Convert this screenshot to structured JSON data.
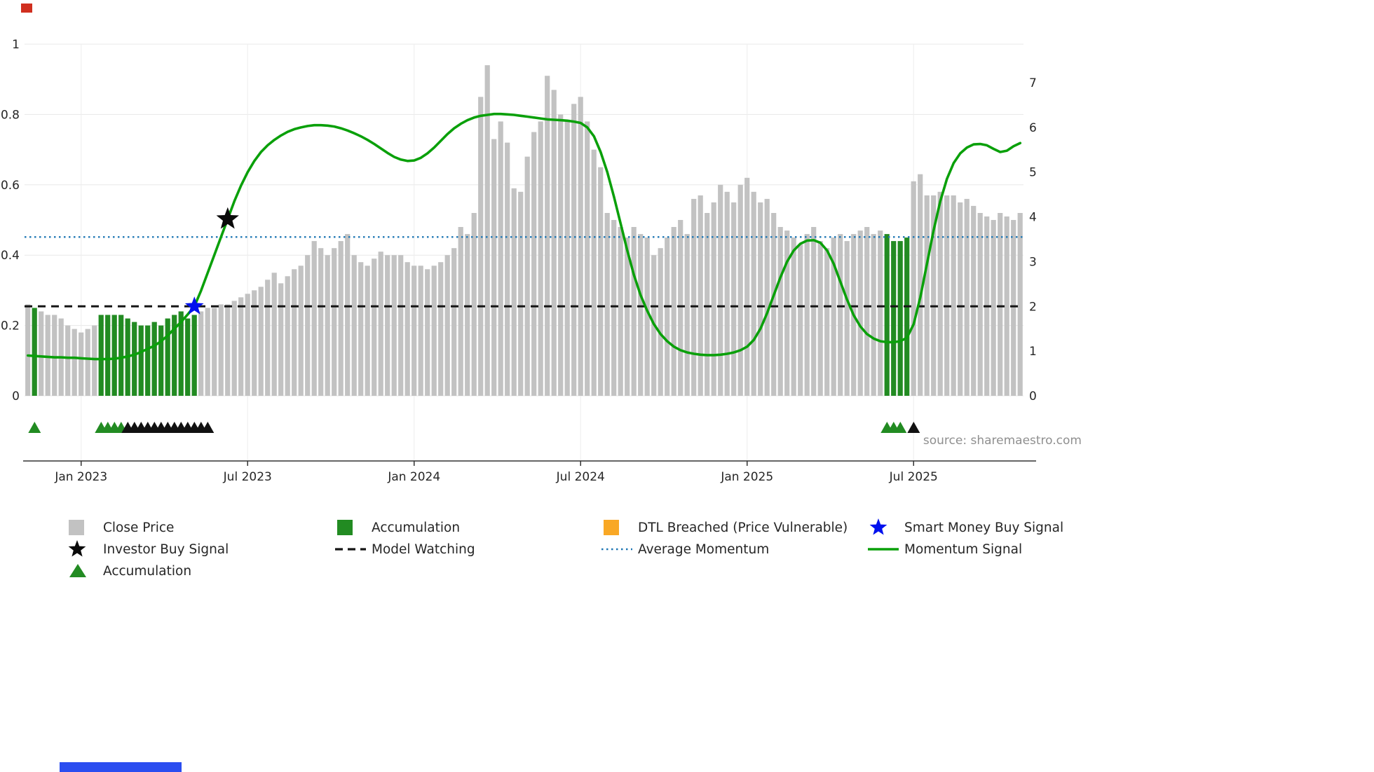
{
  "source_text": "source: sharemaestro.com",
  "axes": {
    "left_ticks": [
      "0",
      "0.2",
      "0.4",
      "0.6",
      "0.8",
      "1"
    ],
    "left_tick_values": [
      0,
      0.2,
      0.4,
      0.6,
      0.8,
      1
    ],
    "right_ticks": [
      "0",
      "1",
      "2",
      "3",
      "4",
      "5",
      "6",
      "7"
    ],
    "right_tick_values": [
      0,
      1,
      2,
      3,
      4,
      5,
      6,
      7
    ],
    "x_ticks": [
      "Jan 2023",
      "Jul 2023",
      "Jan 2024",
      "Jul 2024",
      "Jan 2025",
      "Jul 2025"
    ],
    "x_tick_bar_index": [
      8,
      33,
      58,
      83,
      108,
      133
    ]
  },
  "colors": {
    "close_price_bar": "#c2c2c2",
    "accumulation_bar": "#228b22",
    "momentum_line": "#0aa00a",
    "average_momentum_line": "#1f77b4",
    "model_watching_line": "#151515",
    "smart_money_star": "#0011ee",
    "investor_star": "#0a0a0a",
    "accumulation_triangle": "#228b22",
    "black_triangle": "#111111",
    "dtl_breached": "#f9a825",
    "grid": "#e8e8e8",
    "axis_text": "#262626",
    "source_text": "#8f8f8f",
    "top_left_mark": "#d02f1f",
    "bottom_strip": "#2b4df0"
  },
  "chart_data": {
    "type": "bar+line",
    "title": "",
    "left_axis": {
      "range": [
        0,
        1
      ]
    },
    "right_axis": {
      "range": [
        0,
        7
      ]
    },
    "series": [
      {
        "name": "Close Price",
        "type": "bar",
        "axis": "left",
        "values": [
          0.26,
          0.25,
          0.24,
          0.23,
          0.23,
          0.22,
          0.2,
          0.19,
          0.18,
          0.19,
          0.2,
          0.23,
          0.23,
          0.23,
          0.23,
          0.22,
          0.21,
          0.2,
          0.2,
          0.21,
          0.2,
          0.22,
          0.23,
          0.24,
          0.22,
          0.23,
          0.24,
          0.25,
          0.25,
          0.26,
          0.26,
          0.27,
          0.28,
          0.29,
          0.3,
          0.31,
          0.33,
          0.35,
          0.32,
          0.34,
          0.36,
          0.37,
          0.4,
          0.44,
          0.42,
          0.4,
          0.42,
          0.44,
          0.46,
          0.4,
          0.38,
          0.37,
          0.39,
          0.41,
          0.4,
          0.4,
          0.4,
          0.38,
          0.37,
          0.37,
          0.36,
          0.37,
          0.38,
          0.4,
          0.42,
          0.48,
          0.46,
          0.52,
          0.85,
          0.94,
          0.73,
          0.78,
          0.72,
          0.59,
          0.58,
          0.68,
          0.75,
          0.78,
          0.91,
          0.87,
          0.8,
          0.78,
          0.83,
          0.85,
          0.78,
          0.7,
          0.65,
          0.52,
          0.5,
          0.48,
          0.45,
          0.48,
          0.46,
          0.45,
          0.4,
          0.42,
          0.45,
          0.48,
          0.5,
          0.46,
          0.56,
          0.57,
          0.52,
          0.55,
          0.6,
          0.58,
          0.55,
          0.6,
          0.62,
          0.58,
          0.55,
          0.56,
          0.52,
          0.48,
          0.47,
          0.45,
          0.43,
          0.46,
          0.48,
          0.44,
          0.42,
          0.45,
          0.46,
          0.44,
          0.46,
          0.47,
          0.48,
          0.46,
          0.47,
          0.46,
          0.44,
          0.44,
          0.45,
          0.61,
          0.63,
          0.57,
          0.57,
          0.58,
          0.57,
          0.57,
          0.55,
          0.56,
          0.54,
          0.52,
          0.51,
          0.5,
          0.52,
          0.51,
          0.5,
          0.52
        ]
      },
      {
        "name": "Momentum Signal",
        "type": "line",
        "axis": "right",
        "values": [
          0.9,
          0.89,
          0.88,
          0.87,
          0.86,
          0.86,
          0.85,
          0.85,
          0.84,
          0.83,
          0.82,
          0.82,
          0.82,
          0.83,
          0.85,
          0.88,
          0.92,
          0.98,
          1.05,
          1.12,
          1.22,
          1.35,
          1.5,
          1.65,
          1.82,
          2.0,
          2.35,
          2.75,
          3.15,
          3.55,
          3.95,
          4.35,
          4.7,
          5.0,
          5.25,
          5.45,
          5.6,
          5.72,
          5.82,
          5.9,
          5.96,
          6.0,
          6.03,
          6.05,
          6.05,
          6.04,
          6.02,
          5.98,
          5.93,
          5.87,
          5.8,
          5.72,
          5.63,
          5.53,
          5.43,
          5.34,
          5.28,
          5.25,
          5.26,
          5.32,
          5.42,
          5.55,
          5.7,
          5.85,
          5.98,
          6.08,
          6.16,
          6.22,
          6.26,
          6.28,
          6.3,
          6.3,
          6.29,
          6.28,
          6.26,
          6.24,
          6.22,
          6.2,
          6.18,
          6.17,
          6.16,
          6.15,
          6.13,
          6.1,
          6.0,
          5.8,
          5.45,
          5.0,
          4.45,
          3.85,
          3.25,
          2.7,
          2.25,
          1.9,
          1.6,
          1.38,
          1.22,
          1.1,
          1.02,
          0.97,
          0.94,
          0.92,
          0.91,
          0.91,
          0.92,
          0.94,
          0.97,
          1.02,
          1.1,
          1.25,
          1.5,
          1.85,
          2.25,
          2.65,
          3.0,
          3.25,
          3.4,
          3.47,
          3.48,
          3.42,
          3.25,
          2.95,
          2.55,
          2.15,
          1.8,
          1.55,
          1.38,
          1.28,
          1.22,
          1.2,
          1.2,
          1.22,
          1.3,
          1.6,
          2.2,
          2.95,
          3.7,
          4.35,
          4.85,
          5.2,
          5.42,
          5.55,
          5.62,
          5.63,
          5.6,
          5.52,
          5.45,
          5.48,
          5.58,
          5.65
        ]
      }
    ],
    "accumulation_bar_indices": [
      1,
      11,
      12,
      13,
      14,
      15,
      16,
      17,
      18,
      19,
      20,
      21,
      22,
      23,
      24,
      25,
      129,
      130,
      131,
      132
    ],
    "reference_lines": [
      {
        "name": "Average Momentum",
        "axis": "right",
        "value": 3.55,
        "style": "dotted",
        "color": "#1f77b4"
      },
      {
        "name": "Model Watching",
        "axis": "right",
        "value": 2.0,
        "style": "dashed",
        "color": "#151515"
      }
    ],
    "markers": {
      "smart_money_buy_signal": {
        "bar_index": 25,
        "axis": "right",
        "value": 2.0
      },
      "investor_buy_signal": {
        "bar_index": 30,
        "axis": "right",
        "value": 3.95
      },
      "accumulation_triangle_indices": [
        1,
        11,
        12,
        13,
        14,
        129,
        130,
        131
      ],
      "black_triangle_indices": [
        15,
        16,
        17,
        18,
        19,
        20,
        21,
        22,
        23,
        24,
        25,
        26,
        27,
        133
      ]
    }
  },
  "legend": {
    "columns": [
      [
        {
          "label": "Close Price",
          "swatch": "square",
          "color": "#c2c2c2"
        },
        {
          "label": "Investor Buy Signal",
          "swatch": "star",
          "color": "#0a0a0a"
        },
        {
          "label": "Accumulation",
          "swatch": "triangle",
          "color": "#228b22"
        }
      ],
      [
        {
          "label": "Accumulation",
          "swatch": "square",
          "color": "#228b22"
        },
        {
          "label": "Model Watching",
          "swatch": "dashed-line",
          "color": "#151515"
        }
      ],
      [
        {
          "label": "DTL Breached (Price Vulnerable)",
          "swatch": "square",
          "color": "#f9a825"
        },
        {
          "label": "Average Momentum",
          "swatch": "dotted-line",
          "color": "#1f77b4"
        }
      ],
      [
        {
          "label": "Smart Money Buy Signal",
          "swatch": "star",
          "color": "#0011ee"
        },
        {
          "label": "Momentum Signal",
          "swatch": "solid-line",
          "color": "#0aa00a"
        }
      ]
    ]
  }
}
